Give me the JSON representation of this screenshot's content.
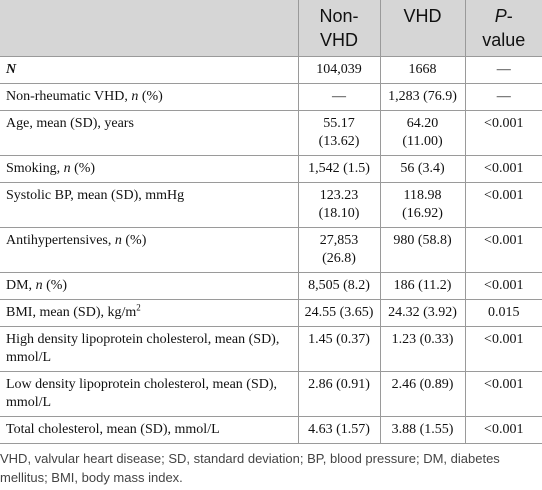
{
  "table": {
    "header": [
      [
        "Non-VHD"
      ],
      [
        "VHD"
      ],
      [
        {
          "text": "P",
          "italic": true
        },
        "-value"
      ]
    ],
    "rows": [
      [
        [
          {
            "text": "N",
            "italic": true,
            "bold": true
          }
        ],
        [
          "104,039"
        ],
        [
          "1668"
        ],
        [
          "—"
        ]
      ],
      [
        [
          "Non-rheumatic VHD, ",
          {
            "text": "n",
            "italic": true
          },
          " (%)"
        ],
        [
          "—"
        ],
        [
          "1,283 (76.9)"
        ],
        [
          "—"
        ]
      ],
      [
        [
          "Age, mean (SD), years"
        ],
        [
          "55.17 (13.62)"
        ],
        [
          "64.20 (11.00)"
        ],
        [
          "<0.001"
        ]
      ],
      [
        [
          "Smoking, ",
          {
            "text": "n",
            "italic": true
          },
          " (%)"
        ],
        [
          "1,542 (1.5)"
        ],
        [
          "56 (3.4)"
        ],
        [
          "<0.001"
        ]
      ],
      [
        [
          "Systolic BP, mean (SD), mmHg"
        ],
        [
          "123.23 (18.10)"
        ],
        [
          "118.98 (16.92)"
        ],
        [
          "<0.001"
        ]
      ],
      [
        [
          "Antihypertensives, ",
          {
            "text": "n",
            "italic": true
          },
          " (%)"
        ],
        [
          "27,853 (26.8)"
        ],
        [
          "980 (58.8)"
        ],
        [
          "<0.001"
        ]
      ],
      [
        [
          "DM, ",
          {
            "text": "n",
            "italic": true
          },
          " (%)"
        ],
        [
          "8,505 (8.2)"
        ],
        [
          "186 (11.2)"
        ],
        [
          "<0.001"
        ]
      ],
      [
        [
          "BMI, mean (SD), kg/m",
          {
            "text": "2",
            "sup": true
          }
        ],
        [
          "24.55 (3.65)"
        ],
        [
          "24.32 (3.92)"
        ],
        [
          "0.015"
        ]
      ],
      [
        [
          "High density lipoprotein cholesterol, mean (SD), mmol/L"
        ],
        [
          "1.45 (0.37)"
        ],
        [
          "1.23 (0.33)"
        ],
        [
          "<0.001"
        ]
      ],
      [
        [
          "Low density lipoprotein cholesterol, mean (SD), mmol/L"
        ],
        [
          "2.86 (0.91)"
        ],
        [
          "2.46 (0.89)"
        ],
        [
          "<0.001"
        ]
      ],
      [
        [
          "Total cholesterol, mean (SD), mmol/L"
        ],
        [
          "4.63 (1.57)"
        ],
        [
          "3.88 (1.55)"
        ],
        [
          "<0.001"
        ]
      ]
    ]
  },
  "footnote": "VHD, valvular heart disease; SD, standard deviation; BP, blood pressure; DM, diabetes mellitus; BMI, body mass index."
}
